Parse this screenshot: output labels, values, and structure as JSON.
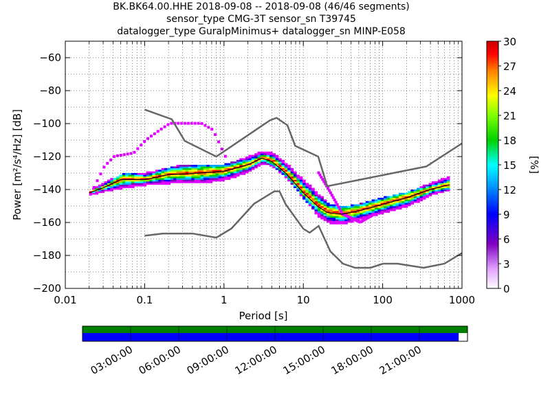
{
  "header": {
    "title_line1": "BK.BK64.00.HHE   2018-09-08 -- 2018-09-08  (46/46 segments)",
    "title_line2": "sensor_type CMG-3T sensor_sn T39745",
    "title_line3": "datalogger_type GuralpMinimus+ datalogger_sn MINP-E058"
  },
  "chart_data": {
    "type": "heatmap",
    "title": "BK.BK64.00.HHE   2018-09-08 -- 2018-09-08  (46/46 segments)",
    "subtitle": "sensor_type CMG-3T sensor_sn T39745 / datalogger_type GuralpMinimus+ datalogger_sn MINP-E058",
    "xlabel": "Period [s]",
    "ylabel": "Power [m²/s⁴/Hz] [dB]",
    "xscale": "log",
    "xlim": [
      0.01,
      1000
    ],
    "ylim": [
      -200,
      -50
    ],
    "grid": true,
    "x_ticks": [
      "0.01",
      "0.1",
      "1",
      "10",
      "100",
      "1000"
    ],
    "y_ticks": [
      "−60",
      "−80",
      "−100",
      "−120",
      "−140",
      "−160",
      "−180",
      "−200"
    ],
    "colorbar": {
      "label": "[%]",
      "range": [
        0,
        30
      ],
      "ticks": [
        "30",
        "27",
        "24",
        "21",
        "18",
        "15",
        "12",
        "9",
        "6",
        "3",
        "0"
      ],
      "colors": [
        "#ffffff",
        "#8000c0",
        "#0000ff",
        "#00ffff",
        "#00c000",
        "#ffff00",
        "#ff8000",
        "#ff0000",
        "#cc0000"
      ]
    },
    "nhnm": {
      "period": [
        0.1,
        0.22,
        0.32,
        0.8,
        3.8,
        4.6,
        6.3,
        7.9,
        15.4,
        20,
        354.8,
        1000
      ],
      "db": [
        -91.5,
        -97.4,
        -110.5,
        -120,
        -98,
        -96.5,
        -101,
        -113.5,
        -120,
        -138,
        -126,
        -112
      ]
    },
    "nlnm": {
      "period": [
        0.1,
        0.17,
        0.4,
        0.8,
        1.24,
        2.4,
        4.3,
        5,
        6,
        10,
        12,
        15.6,
        21.9,
        31.6,
        45,
        70,
        101,
        154,
        328,
        600,
        1000
      ],
      "db": [
        -168,
        -166.7,
        -166.7,
        -169.2,
        -163.7,
        -148.6,
        -141.1,
        -141.1,
        -149,
        -163.8,
        -166.2,
        -162.1,
        -177.5,
        -185,
        -187.5,
        -187.5,
        -185,
        -185,
        -187.5,
        -185,
        -178.5
      ]
    },
    "mode": {
      "period": [
        0.02,
        0.03,
        0.05,
        0.1,
        0.2,
        0.5,
        1,
        2,
        3,
        4,
        6,
        10,
        15,
        20,
        30,
        50,
        100,
        200,
        400,
        700
      ],
      "db": [
        -142,
        -139,
        -134,
        -134,
        -131,
        -130,
        -129,
        -125,
        -121,
        -123,
        -130,
        -142,
        -150,
        -154,
        -155,
        -153,
        -149,
        -145,
        -140,
        -137
      ]
    },
    "band_high": {
      "period": [
        0.02,
        0.03,
        0.05,
        0.1,
        0.2,
        0.3,
        0.5,
        1,
        2,
        3,
        4,
        6,
        10,
        15,
        20,
        30,
        50,
        100,
        200,
        400,
        700
      ],
      "db": [
        -142,
        -137,
        -132,
        -131,
        -128,
        -126,
        -127,
        -126,
        -121,
        -118,
        -119,
        -126,
        -136,
        -144,
        -150,
        -152,
        -150,
        -146,
        -143,
        -137,
        -133
      ]
    },
    "band_low": {
      "period": [
        0.02,
        0.03,
        0.05,
        0.1,
        0.2,
        0.3,
        0.5,
        1,
        2,
        3,
        4,
        6,
        10,
        15,
        20,
        30,
        50,
        100,
        200,
        400,
        700
      ],
      "db": [
        -143,
        -141,
        -139,
        -137,
        -136,
        -136,
        -136,
        -134,
        -129,
        -124,
        -126,
        -133,
        -146,
        -156,
        -160,
        -161,
        -158,
        -154,
        -150,
        -143,
        -140
      ]
    },
    "outlier_high": {
      "period": [
        0.02,
        0.03,
        0.04,
        0.07,
        0.1,
        0.15,
        0.2,
        0.3,
        0.5,
        0.7,
        1
      ],
      "db": [
        -143,
        -126,
        -120,
        -118,
        -110,
        -104,
        -100,
        -100,
        -100,
        -104,
        -120
      ]
    },
    "outlier_low": {
      "period": [
        15,
        20,
        30,
        50,
        70
      ],
      "db": [
        -130,
        -140,
        -155,
        -160,
        -156
      ]
    }
  },
  "time_bar": {
    "ticks": [
      "03:00:00",
      "06:00:00",
      "09:00:00",
      "12:00:00",
      "15:00:00",
      "18:00:00",
      "21:00:00"
    ],
    "coverage_fraction": 0.977,
    "colors": {
      "data": "#008000",
      "psd": "#0000ff"
    }
  }
}
